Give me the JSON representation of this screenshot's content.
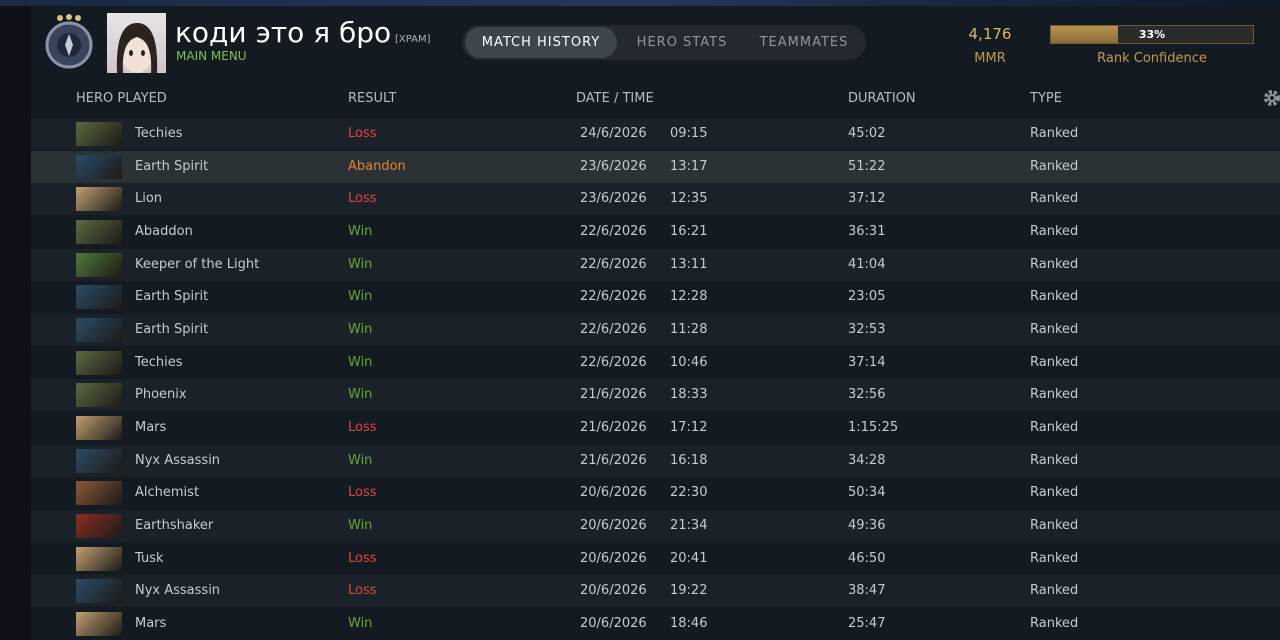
{
  "header": {
    "player_name": "коди это я бро",
    "clan_tag": "[XPAM]",
    "subtitle": "MAIN MENU",
    "tabs": [
      "MATCH HISTORY",
      "HERO STATS",
      "TEAMMATES"
    ],
    "active_tab": 0,
    "mmr": "4,176",
    "mmr_label": "MMR",
    "rank_confidence": {
      "value": 33,
      "label": "33%"
    },
    "rank_confidence_label": "Rank Confidence"
  },
  "table": {
    "columns": [
      "HERO PLAYED",
      "RESULT",
      "DATE / TIME",
      "DURATION",
      "TYPE"
    ],
    "highlighted_row": 1,
    "result_colors": {
      "Win": "#6aa632",
      "Loss": "#e0473a",
      "Abandon": "#e8822c"
    },
    "rows": [
      [
        "Techies",
        "Loss",
        "24/6/2026",
        "09:15",
        "45:02",
        "Ranked"
      ],
      [
        "Earth Spirit",
        "Abandon",
        "23/6/2026",
        "13:17",
        "51:22",
        "Ranked"
      ],
      [
        "Lion",
        "Loss",
        "23/6/2026",
        "12:35",
        "37:12",
        "Ranked"
      ],
      [
        "Abaddon",
        "Win",
        "22/6/2026",
        "16:21",
        "36:31",
        "Ranked"
      ],
      [
        "Keeper of the Light",
        "Win",
        "22/6/2026",
        "13:11",
        "41:04",
        "Ranked"
      ],
      [
        "Earth Spirit",
        "Win",
        "22/6/2026",
        "12:28",
        "23:05",
        "Ranked"
      ],
      [
        "Earth Spirit",
        "Win",
        "22/6/2026",
        "11:28",
        "32:53",
        "Ranked"
      ],
      [
        "Techies",
        "Win",
        "22/6/2026",
        "10:46",
        "37:14",
        "Ranked"
      ],
      [
        "Phoenix",
        "Win",
        "21/6/2026",
        "18:33",
        "32:56",
        "Ranked"
      ],
      [
        "Mars",
        "Loss",
        "21/6/2026",
        "17:12",
        "1:15:25",
        "Ranked"
      ],
      [
        "Nyx Assassin",
        "Win",
        "21/6/2026",
        "16:18",
        "34:28",
        "Ranked"
      ],
      [
        "Alchemist",
        "Loss",
        "20/6/2026",
        "22:30",
        "50:34",
        "Ranked"
      ],
      [
        "Earthshaker",
        "Win",
        "20/6/2026",
        "21:34",
        "49:36",
        "Ranked"
      ],
      [
        "Tusk",
        "Loss",
        "20/6/2026",
        "20:41",
        "46:50",
        "Ranked"
      ],
      [
        "Nyx Assassin",
        "Loss",
        "20/6/2026",
        "19:22",
        "38:47",
        "Ranked"
      ],
      [
        "Mars",
        "Win",
        "20/6/2026",
        "18:46",
        "25:47",
        "Ranked"
      ]
    ]
  }
}
